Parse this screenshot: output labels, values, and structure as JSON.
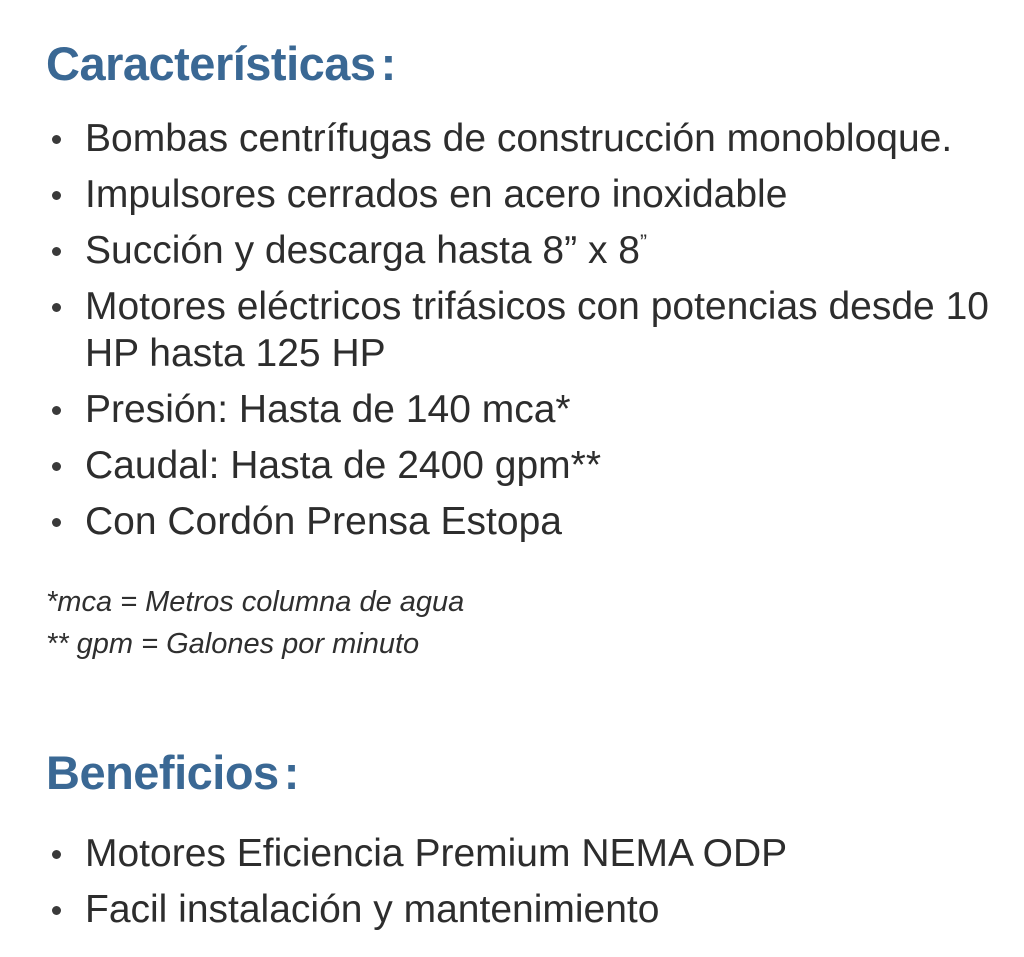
{
  "colors": {
    "accent": "#3a6894",
    "text": "#2d2d2d",
    "background": "#ffffff"
  },
  "characteristics": {
    "heading": {
      "text": "Características",
      "colon": ":"
    },
    "bullets": [
      {
        "text": "Bombas centrífugas de construcción monobloque."
      },
      {
        "text": "Impulsores cerrados en acero inoxidable"
      },
      {
        "text": "Succión y descarga hasta 8” x 8",
        "sup": "”"
      },
      {
        "text": "Motores eléctricos trifásicos con potencias desde 10 HP hasta 125 HP"
      },
      {
        "text": "Presión: Hasta de 140 mca*"
      },
      {
        "text": "Caudal: Hasta de 2400 gpm**"
      },
      {
        "text": "Con Cordón Prensa Estopa"
      }
    ],
    "footnotes": [
      {
        "text": "*mca = Metros columna de agua"
      },
      {
        "text": "** gpm = Galones por minuto"
      }
    ]
  },
  "benefits": {
    "heading": {
      "text": "Beneficios",
      "colon": ":"
    },
    "bullets": [
      {
        "text": "Motores Eficiencia Premium NEMA ODP"
      },
      {
        "text": "Facil instalación y mantenimiento"
      }
    ]
  }
}
